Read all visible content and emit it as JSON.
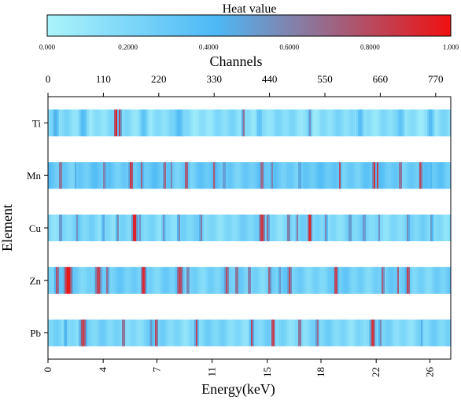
{
  "chart_data": {
    "type": "heatmap",
    "colorbar": {
      "title": "Heat value",
      "ticks": [
        "0.000",
        "0.2000",
        "0.4000",
        "0.6000",
        "0.8000",
        "1.000"
      ],
      "range": [
        0,
        1
      ],
      "colors": [
        "#aaf4fb",
        "#4db8f5",
        "#f01010"
      ]
    },
    "top_axis": {
      "label": "Channels",
      "ticks": [
        "0",
        "110",
        "220",
        "330",
        "440",
        "550",
        "660",
        "770"
      ],
      "tick_values": [
        0,
        110,
        220,
        330,
        440,
        550,
        660,
        770
      ],
      "range": [
        0,
        800
      ]
    },
    "bottom_axis": {
      "label": "Energy(keV)",
      "ticks": [
        "0",
        "4",
        "7",
        "11",
        "15",
        "18",
        "22",
        "26"
      ],
      "tick_values": [
        0,
        3.7,
        7.3,
        11,
        14.7,
        18.3,
        22,
        25.6
      ],
      "range": [
        0,
        27
      ]
    },
    "y_axis": {
      "label": "Element",
      "categories": [
        "Ti",
        "Mn",
        "Cu",
        "Zn",
        "Pb"
      ]
    },
    "rows": [
      {
        "element": "Ti",
        "base": 0.15,
        "peaks": [
          [
            15,
            8,
            0.45
          ],
          [
            70,
            10,
            0.4
          ],
          [
            135,
            4,
            1.0
          ],
          [
            143,
            3,
            0.9
          ],
          [
            190,
            10,
            0.35
          ],
          [
            260,
            12,
            0.4
          ],
          [
            388,
            3,
            0.75
          ],
          [
            420,
            8,
            0.35
          ],
          [
            520,
            4,
            0.55
          ],
          [
            620,
            8,
            0.4
          ],
          [
            700,
            10,
            0.35
          ],
          [
            760,
            8,
            0.4
          ]
        ]
      },
      {
        "element": "Mn",
        "base": 0.3,
        "peaks": [
          [
            25,
            4,
            0.75
          ],
          [
            55,
            3,
            0.45
          ],
          [
            112,
            4,
            0.65
          ],
          [
            165,
            5,
            0.9
          ],
          [
            186,
            4,
            0.7
          ],
          [
            232,
            4,
            0.75
          ],
          [
            245,
            3,
            0.6
          ],
          [
            275,
            5,
            0.8
          ],
          [
            330,
            4,
            0.75
          ],
          [
            350,
            3,
            0.65
          ],
          [
            425,
            5,
            0.75
          ],
          [
            445,
            4,
            0.6
          ],
          [
            500,
            4,
            0.55
          ],
          [
            580,
            3,
            0.8
          ],
          [
            648,
            4,
            0.9
          ],
          [
            655,
            3,
            0.85
          ],
          [
            700,
            4,
            0.75
          ],
          [
            740,
            4,
            0.85
          ],
          [
            760,
            3,
            0.45
          ]
        ]
      },
      {
        "element": "Cu",
        "base": 0.2,
        "peaks": [
          [
            25,
            4,
            0.6
          ],
          [
            58,
            4,
            0.55
          ],
          [
            110,
            4,
            0.5
          ],
          [
            138,
            3,
            0.65
          ],
          [
            172,
            6,
            1.0
          ],
          [
            182,
            3,
            0.6
          ],
          [
            230,
            4,
            0.55
          ],
          [
            260,
            4,
            0.6
          ],
          [
            304,
            4,
            0.65
          ],
          [
            425,
            7,
            0.9
          ],
          [
            437,
            3,
            0.75
          ],
          [
            478,
            4,
            0.7
          ],
          [
            495,
            3,
            0.65
          ],
          [
            520,
            5,
            0.95
          ],
          [
            552,
            4,
            0.6
          ],
          [
            600,
            4,
            0.6
          ],
          [
            628,
            4,
            0.6
          ],
          [
            658,
            3,
            0.55
          ],
          [
            715,
            4,
            0.6
          ],
          [
            762,
            4,
            0.55
          ]
        ]
      },
      {
        "element": "Zn",
        "base": 0.25,
        "peaks": [
          [
            18,
            5,
            0.8
          ],
          [
            40,
            10,
            1.0
          ],
          [
            100,
            8,
            0.85
          ],
          [
            118,
            4,
            0.7
          ],
          [
            190,
            6,
            0.95
          ],
          [
            262,
            8,
            0.85
          ],
          [
            278,
            3,
            0.75
          ],
          [
            355,
            5,
            0.8
          ],
          [
            375,
            4,
            0.75
          ],
          [
            400,
            4,
            0.7
          ],
          [
            440,
            4,
            0.75
          ],
          [
            460,
            3,
            0.6
          ],
          [
            480,
            5,
            0.8
          ],
          [
            572,
            5,
            0.9
          ],
          [
            665,
            4,
            0.75
          ],
          [
            695,
            3,
            0.75
          ],
          [
            715,
            5,
            0.85
          ]
        ]
      },
      {
        "element": "Pb",
        "base": 0.2,
        "peaks": [
          [
            35,
            5,
            0.45
          ],
          [
            70,
            8,
            0.85
          ],
          [
            150,
            4,
            0.75
          ],
          [
            205,
            5,
            0.55
          ],
          [
            215,
            4,
            0.85
          ],
          [
            295,
            4,
            0.8
          ],
          [
            405,
            4,
            0.8
          ],
          [
            447,
            4,
            0.95
          ],
          [
            500,
            4,
            0.75
          ],
          [
            535,
            4,
            0.7
          ],
          [
            645,
            6,
            0.9
          ],
          [
            660,
            4,
            0.6
          ],
          [
            742,
            4,
            0.45
          ]
        ]
      }
    ]
  }
}
